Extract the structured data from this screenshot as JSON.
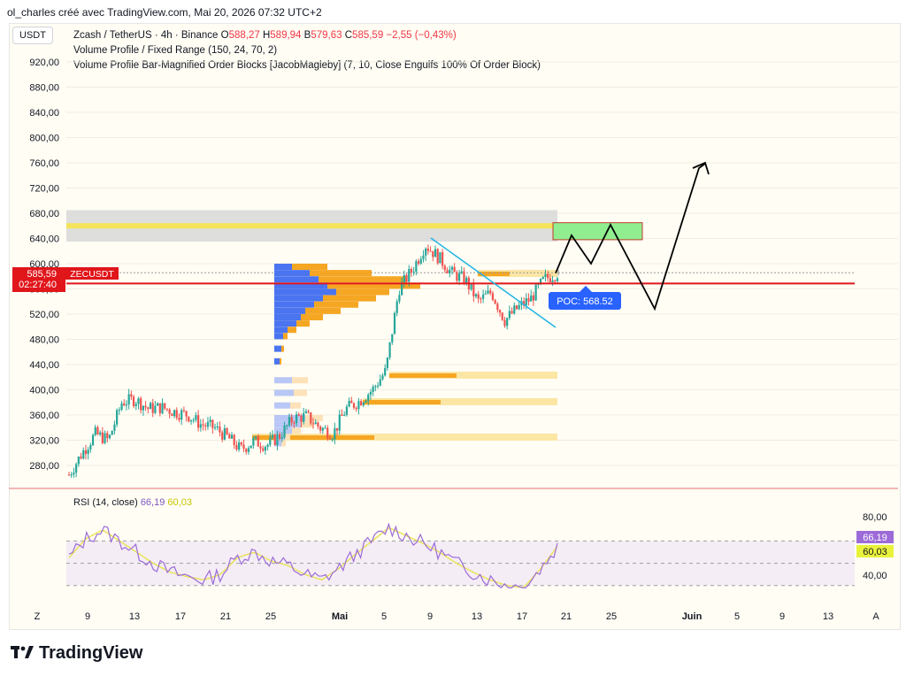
{
  "header": {
    "credit": "ol_charles créé avec TradingView.com, Mai 20, 2026 07:32 UTC+2"
  },
  "unit": "USDT",
  "legend": {
    "symbol": "Zcash / TetherUS · 4h · Binance",
    "o_label": "O",
    "o_value": "588,27",
    "h_label": "H",
    "h_value": "589,94",
    "b_label": "B",
    "b_value": "579,63",
    "c_label": "C",
    "c_value": "585,59",
    "change": "−2,55 (−0,43%)",
    "indicator1": "Volume Profile / Fixed Range (150, 24, 70, 2)",
    "indicator2": "Volume Profile Bar-Magnified Order Blocks [JacobMagleby] (7, 10, Close Engulfs 100% Of Order Block)"
  },
  "price_tag": {
    "price": "585,59",
    "countdown": "02:27:40",
    "symbol": "ZECUSDT"
  },
  "poc_label": "POC: 568.52",
  "rsi": {
    "label": "RSI (14, close)",
    "value": "66,19",
    "ma": "60,03",
    "levels": [
      "80,00",
      "40,00"
    ]
  },
  "footer": {
    "brand": "TradingView"
  },
  "colors": {
    "up": "#26a69a",
    "down": "#ef5350",
    "support": "#e0161b",
    "trend": "#22b5e5",
    "target": "#90ee90",
    "rsi": "#9c6bd8",
    "rsi_ma": "#e9e35b"
  },
  "chart_data": {
    "type": "candlestick",
    "title": "Zcash / TetherUS · 4h · Binance",
    "y_ticks": [
      "920,00",
      "880,00",
      "840,00",
      "800,00",
      "760,00",
      "720,00",
      "680,00",
      "640,00",
      "600,00",
      "560,00",
      "520,00",
      "480,00",
      "440,00",
      "400,00",
      "360,00",
      "320,00",
      "280,00"
    ],
    "ylim": [
      245,
      940
    ],
    "x_ticks": [
      "Z",
      "9",
      "13",
      "17",
      "21",
      "25",
      "Mai",
      "5",
      "9",
      "13",
      "17",
      "21",
      "25",
      "Juin",
      "5",
      "9",
      "13",
      "A"
    ],
    "close_path": [
      [
        0,
        265
      ],
      [
        1,
        300
      ],
      [
        2,
        330
      ],
      [
        3,
        320
      ],
      [
        4,
        380
      ],
      [
        5,
        385
      ],
      [
        6,
        370
      ],
      [
        7,
        372
      ],
      [
        8,
        365
      ],
      [
        9,
        360
      ],
      [
        10,
        345
      ],
      [
        11,
        340
      ],
      [
        12,
        325
      ],
      [
        13,
        305
      ],
      [
        14,
        318
      ],
      [
        15,
        312
      ],
      [
        16,
        328
      ],
      [
        17,
        355
      ],
      [
        18,
        358
      ],
      [
        19,
        340
      ],
      [
        20,
        330
      ],
      [
        21,
        370
      ],
      [
        22,
        382
      ],
      [
        23,
        400
      ],
      [
        24,
        430
      ],
      [
        25,
        560
      ],
      [
        26,
        590
      ],
      [
        27,
        630
      ],
      [
        28,
        610
      ],
      [
        29,
        585
      ],
      [
        30,
        575
      ],
      [
        31,
        540
      ],
      [
        32,
        555
      ],
      [
        33,
        510
      ],
      [
        34,
        530
      ],
      [
        35,
        545
      ],
      [
        36,
        575
      ],
      [
        37,
        585
      ]
    ],
    "support_level": 568.52,
    "resistance_zone": [
      635,
      685
    ],
    "resistance_line": 660,
    "target_zone": [
      638,
      665
    ],
    "projection_path": [
      [
        37,
        585
      ],
      [
        38,
        645
      ],
      [
        39,
        600
      ],
      [
        40,
        660
      ],
      [
        41,
        575
      ],
      [
        42,
        525
      ],
      [
        43,
        600
      ],
      [
        44,
        760
      ]
    ],
    "rsi_ylim": [
      25,
      95
    ]
  }
}
